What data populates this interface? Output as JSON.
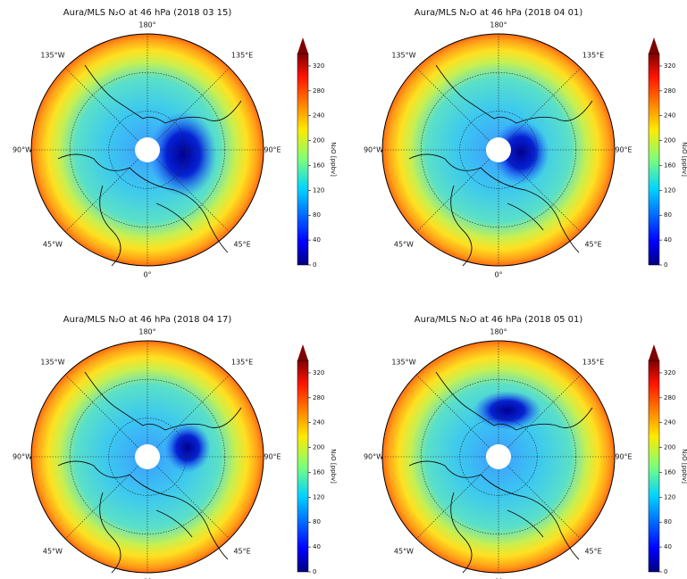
{
  "panels": [
    {
      "title": "Aura/MLS N₂O at 46 hPa (2018 03 15)"
    },
    {
      "title": "Aura/MLS N₂O at 46 hPa (2018 04 01)"
    },
    {
      "title": "Aura/MLS N₂O at 46 hPa (2018 04 17)"
    },
    {
      "title": "Aura/MLS N₂O at 46 hPa (2018 05 01)"
    }
  ],
  "lon_labels": [
    "180°",
    "135°E",
    "90°E",
    "45°E",
    "0°",
    "45°W",
    "90°W",
    "135°W"
  ],
  "colorbar": {
    "label": "N₂O [ppbv]",
    "lim": [
      0,
      340
    ],
    "ticks": [
      0,
      40,
      80,
      120,
      160,
      200,
      240,
      280,
      320
    ]
  }
}
